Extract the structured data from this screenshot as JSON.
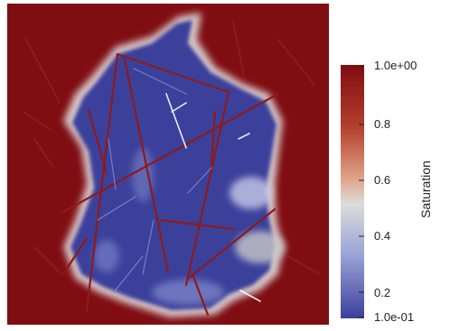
{
  "image": {
    "kind": "simulation saturation field with fracture network",
    "colors": {
      "high": "#7f0d12",
      "mid_high": "#c0492f",
      "mid": "#dcdcdc",
      "mid_low": "#8892cc",
      "low": "#3b3f9b"
    }
  },
  "colorbar": {
    "title": "Saturation",
    "tick_labels": [
      "1.0e+00",
      "0.8",
      "0.6",
      "0.4",
      "0.2",
      "1.0e-01"
    ],
    "range": [
      0.1,
      1.0
    ],
    "gradient": [
      "#7f0d12",
      "#b4412d",
      "#e0a58a",
      "#dcdcdc",
      "#9aa3d6",
      "#3b3f9b"
    ]
  }
}
